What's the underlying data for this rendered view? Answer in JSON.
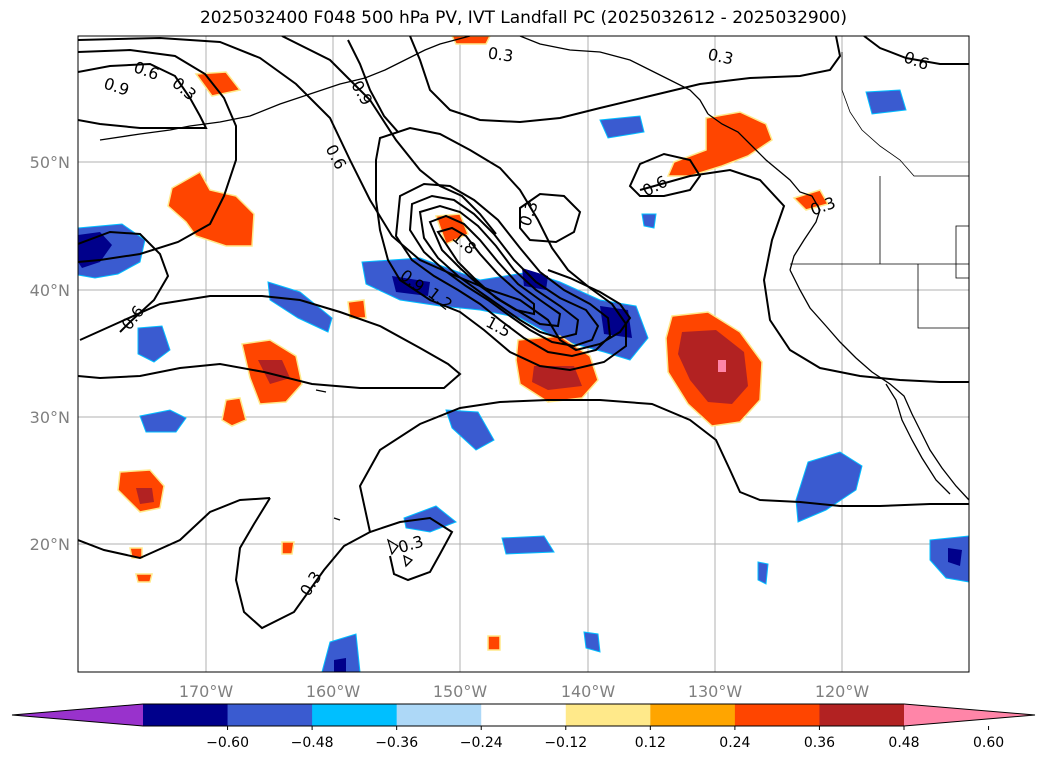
{
  "title": "2025032400 F048 500 hPa PV, IVT Landfall PC (2025032612 - 2025032900)",
  "map": {
    "lat_labels": [
      "50°N",
      "40°N",
      "30°N",
      "20°N"
    ],
    "lon_labels": [
      "170°W",
      "160°W",
      "150°W",
      "140°W",
      "130°W",
      "120°W"
    ],
    "gridlines": true
  },
  "contours": {
    "color": "#000000",
    "labels": [
      "0.9",
      "0.6",
      "0.3",
      "0.9",
      "0.3",
      "0.3",
      "0.6",
      "0.6",
      "0.3",
      "0.6",
      "1.8",
      "0.3",
      "0.6",
      "0.9",
      "1.2",
      "1.5",
      "0.3",
      "0.3"
    ]
  },
  "colorbar": {
    "colors": [
      "#9932cc",
      "#00008b",
      "#3a5bd0",
      "#00bfff",
      "#add8f7",
      "#ffffff",
      "#ffe98a",
      "#ffa500",
      "#ff4500",
      "#b22222",
      "#ff85a8"
    ],
    "ticks": [
      "−0.60",
      "−0.48",
      "−0.36",
      "−0.24",
      "−0.12",
      "0.12",
      "0.24",
      "0.36",
      "0.48",
      "0.60"
    ],
    "extend": "both"
  }
}
